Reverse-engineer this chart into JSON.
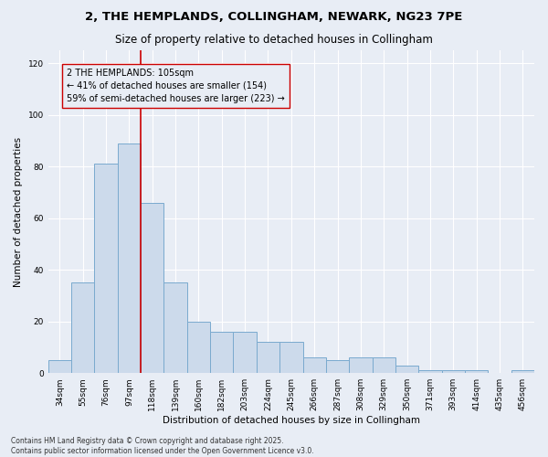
{
  "title_line1": "2, THE HEMPLANDS, COLLINGHAM, NEWARK, NG23 7PE",
  "title_line2": "Size of property relative to detached houses in Collingham",
  "xlabel": "Distribution of detached houses by size in Collingham",
  "ylabel": "Number of detached properties",
  "categories": [
    "34sqm",
    "55sqm",
    "76sqm",
    "97sqm",
    "118sqm",
    "139sqm",
    "160sqm",
    "182sqm",
    "203sqm",
    "224sqm",
    "245sqm",
    "266sqm",
    "287sqm",
    "308sqm",
    "329sqm",
    "350sqm",
    "371sqm",
    "393sqm",
    "414sqm",
    "435sqm",
    "456sqm"
  ],
  "values": [
    5,
    35,
    81,
    89,
    66,
    35,
    20,
    16,
    16,
    12,
    12,
    6,
    5,
    6,
    6,
    3,
    1,
    1,
    1,
    0,
    1
  ],
  "bar_color": "#ccdaeb",
  "bar_edge_color": "#7aaace",
  "vline_x": 3.5,
  "vline_color": "#cc0000",
  "annotation_text": "2 THE HEMPLANDS: 105sqm\n← 41% of detached houses are smaller (154)\n59% of semi-detached houses are larger (223) →",
  "ylim": [
    0,
    125
  ],
  "yticks": [
    0,
    20,
    40,
    60,
    80,
    100,
    120
  ],
  "background_color": "#e8edf5",
  "footer_line1": "Contains HM Land Registry data © Crown copyright and database right 2025.",
  "footer_line2": "Contains public sector information licensed under the Open Government Licence v3.0.",
  "title_fontsize": 9.5,
  "subtitle_fontsize": 8.5,
  "axis_label_fontsize": 7.5,
  "tick_fontsize": 6.5,
  "annotation_fontsize": 7,
  "footer_fontsize": 5.5
}
